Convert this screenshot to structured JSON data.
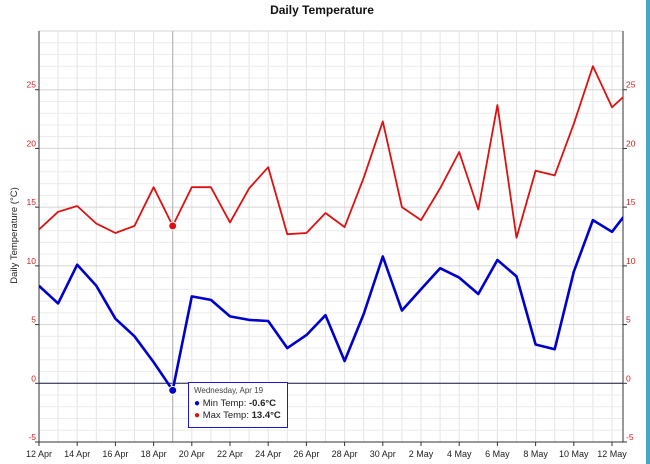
{
  "chart_data": {
    "type": "line",
    "title": "Daily Temperature",
    "ylabel": "Daily Temperature (°C)",
    "xlabel": "",
    "ylim": [
      -5,
      30
    ],
    "yticks": [
      -5,
      0,
      5,
      10,
      15,
      20,
      25
    ],
    "grid": true,
    "x": [
      "12 Apr",
      "13 Apr",
      "14 Apr",
      "15 Apr",
      "16 Apr",
      "17 Apr",
      "18 Apr",
      "19 Apr",
      "20 Apr",
      "21 Apr",
      "22 Apr",
      "23 Apr",
      "24 Apr",
      "25 Apr",
      "26 Apr",
      "27 Apr",
      "28 Apr",
      "29 Apr",
      "30 Apr",
      "1 May",
      "2 May",
      "3 May",
      "4 May",
      "5 May",
      "6 May",
      "7 May",
      "8 May",
      "9 May",
      "10 May",
      "11 May",
      "12 May",
      "13 May"
    ],
    "xtick_labels": [
      "12 Apr",
      "14 Apr",
      "16 Apr",
      "18 Apr",
      "20 Apr",
      "22 Apr",
      "24 Apr",
      "26 Apr",
      "28 Apr",
      "30 Apr",
      "2 May",
      "4 May",
      "6 May",
      "8 May",
      "10 May",
      "12 May"
    ],
    "series": [
      {
        "name": "Min Temp",
        "color": "#0000cc",
        "values": [
          8.3,
          6.8,
          10.1,
          8.3,
          5.5,
          4.0,
          1.8,
          -0.6,
          7.4,
          7.1,
          5.7,
          5.4,
          5.3,
          3.0,
          4.1,
          5.8,
          1.9,
          5.9,
          10.8,
          6.2,
          8.0,
          9.8,
          9.0,
          7.6,
          10.5,
          9.1,
          3.3,
          2.9,
          9.5,
          13.9,
          12.9,
          15.0
        ]
      },
      {
        "name": "Max Temp",
        "color": "#dd1111",
        "values": [
          13.1,
          14.6,
          15.1,
          13.6,
          12.8,
          13.4,
          16.7,
          13.4,
          16.7,
          16.7,
          13.7,
          16.6,
          18.4,
          12.7,
          12.8,
          14.5,
          13.3,
          17.5,
          22.3,
          15.0,
          13.9,
          16.6,
          19.7,
          14.8,
          23.7,
          12.4,
          18.1,
          17.7,
          22.1,
          27.0,
          23.5,
          25.0
        ]
      }
    ]
  },
  "tooltip": {
    "date": "Wednesday, Apr 19",
    "min_label": "Min Temp: ",
    "min_value": "-0.6°C",
    "max_label": "Max Temp: ",
    "max_value": "13.4°C",
    "dot": "●"
  },
  "colors": {
    "axis_left_labels": "#cc2222",
    "axis_right_labels": "#cc2222",
    "tooltip_border": "#1a1ad0"
  }
}
